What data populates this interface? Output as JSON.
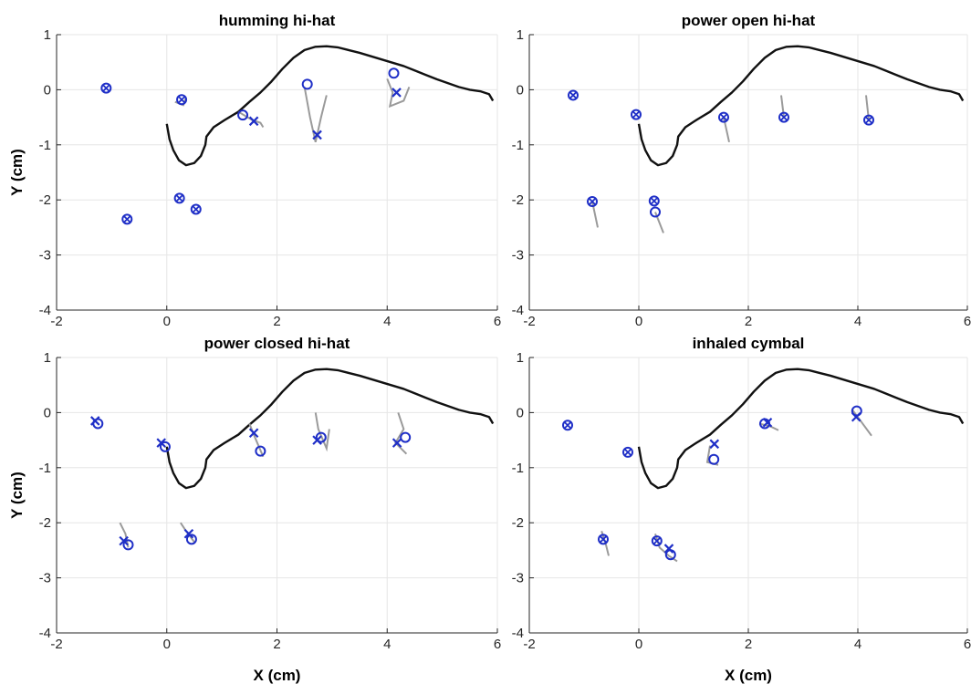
{
  "chart_data": [
    {
      "type": "scatter",
      "title": "humming hi-hat",
      "xlabel": "",
      "ylabel": "Y (cm)",
      "xlim": [
        -2,
        6
      ],
      "ylim": [
        -4,
        1
      ],
      "xticks": [
        "-2",
        "0",
        "2",
        "4",
        "6"
      ],
      "yticks": [
        "-4",
        "-3",
        "-2",
        "-1",
        "0",
        "1"
      ],
      "grid": true,
      "points": [
        {
          "x": -1.1,
          "y": 0.03,
          "cross": true
        },
        {
          "x": 0.27,
          "y": -0.18,
          "cross": true
        },
        {
          "x": -0.72,
          "y": -2.35,
          "cross": true
        },
        {
          "x": 0.23,
          "y": -1.97,
          "cross": true
        },
        {
          "x": 0.53,
          "y": -2.17,
          "cross": true
        },
        {
          "x": 1.38,
          "y": -0.46,
          "cross": false
        },
        {
          "x": 1.58,
          "y": -0.57,
          "cross": false,
          "x_mark": true
        },
        {
          "x": 2.55,
          "y": 0.1,
          "cross": false
        },
        {
          "x": 2.73,
          "y": -0.82,
          "cross": false,
          "x_mark": true
        },
        {
          "x": 4.12,
          "y": 0.3,
          "cross": false
        },
        {
          "x": 4.17,
          "y": -0.05,
          "cross": false,
          "x_mark": true
        }
      ],
      "traces": [
        [
          [
            0.15,
            -0.22
          ],
          [
            0.3,
            -0.28
          ],
          [
            0.35,
            -0.14
          ]
        ],
        [
          [
            1.3,
            -0.4
          ],
          [
            1.55,
            -0.55
          ],
          [
            1.7,
            -0.6
          ],
          [
            1.75,
            -0.68
          ]
        ],
        [
          [
            2.5,
            0.05
          ],
          [
            2.6,
            -0.5
          ],
          [
            2.7,
            -0.95
          ],
          [
            2.8,
            -0.5
          ],
          [
            2.9,
            -0.1
          ]
        ],
        [
          [
            4.0,
            0.2
          ],
          [
            4.1,
            -0.05
          ],
          [
            4.05,
            -0.3
          ],
          [
            4.3,
            -0.2
          ],
          [
            4.4,
            0.05
          ]
        ]
      ]
    },
    {
      "type": "scatter",
      "title": "power open hi-hat",
      "xlabel": "",
      "ylabel": "",
      "xlim": [
        -2,
        6
      ],
      "ylim": [
        -4,
        1
      ],
      "xticks": [
        "-2",
        "0",
        "2",
        "4",
        "6"
      ],
      "yticks": [
        "-4",
        "-3",
        "-2",
        "-1",
        "0",
        "1"
      ],
      "grid": true,
      "points": [
        {
          "x": -1.2,
          "y": -0.1,
          "cross": true
        },
        {
          "x": -0.05,
          "y": -0.45,
          "cross": true
        },
        {
          "x": -0.85,
          "y": -2.03,
          "cross": true
        },
        {
          "x": 0.28,
          "y": -2.02,
          "cross": true
        },
        {
          "x": 0.3,
          "y": -2.22,
          "cross": false
        },
        {
          "x": 1.55,
          "y": -0.5,
          "cross": true
        },
        {
          "x": 2.65,
          "y": -0.5,
          "cross": true
        },
        {
          "x": 4.2,
          "y": -0.55,
          "cross": true
        }
      ],
      "traces": [
        [
          [
            -0.85,
            -2.03
          ],
          [
            -0.75,
            -2.5
          ]
        ],
        [
          [
            0.3,
            -2.22
          ],
          [
            0.45,
            -2.6
          ]
        ],
        [
          [
            1.55,
            -0.5
          ],
          [
            1.65,
            -0.95
          ]
        ],
        [
          [
            2.6,
            -0.1
          ],
          [
            2.65,
            -0.5
          ]
        ],
        [
          [
            4.15,
            -0.1
          ],
          [
            4.2,
            -0.55
          ]
        ]
      ]
    },
    {
      "type": "scatter",
      "title": "power closed hi-hat",
      "xlabel": "X (cm)",
      "ylabel": "Y (cm)",
      "xlim": [
        -2,
        6
      ],
      "ylim": [
        -4,
        1
      ],
      "xticks": [
        "-2",
        "0",
        "2",
        "4",
        "6"
      ],
      "yticks": [
        "-4",
        "-3",
        "-2",
        "-1",
        "0",
        "1"
      ],
      "grid": true,
      "points": [
        {
          "x": -1.25,
          "y": -0.2,
          "cross": false
        },
        {
          "x": -1.3,
          "y": -0.15,
          "cross": false,
          "x_mark": true
        },
        {
          "x": -0.03,
          "y": -0.62,
          "cross": false
        },
        {
          "x": -0.1,
          "y": -0.55,
          "cross": false,
          "x_mark": true
        },
        {
          "x": -0.7,
          "y": -2.4,
          "cross": false
        },
        {
          "x": -0.78,
          "y": -2.33,
          "cross": false,
          "x_mark": true
        },
        {
          "x": 0.45,
          "y": -2.3,
          "cross": false
        },
        {
          "x": 0.4,
          "y": -2.2,
          "cross": false,
          "x_mark": true
        },
        {
          "x": 1.58,
          "y": -0.37,
          "cross": false,
          "x_mark": true
        },
        {
          "x": 1.7,
          "y": -0.7,
          "cross": false
        },
        {
          "x": 2.73,
          "y": -0.5,
          "cross": false,
          "x_mark": true
        },
        {
          "x": 2.8,
          "y": -0.45,
          "cross": false
        },
        {
          "x": 4.18,
          "y": -0.55,
          "cross": false,
          "x_mark": true
        },
        {
          "x": 4.33,
          "y": -0.45,
          "cross": false
        }
      ],
      "traces": [
        [
          [
            -0.85,
            -2.0
          ],
          [
            -0.75,
            -2.2
          ],
          [
            -0.7,
            -2.45
          ]
        ],
        [
          [
            0.25,
            -2.0
          ],
          [
            0.35,
            -2.15
          ],
          [
            0.5,
            -2.35
          ]
        ],
        [
          [
            1.5,
            -0.2
          ],
          [
            1.6,
            -0.45
          ],
          [
            1.75,
            -0.8
          ]
        ],
        [
          [
            2.7,
            0.0
          ],
          [
            2.75,
            -0.3
          ],
          [
            2.9,
            -0.65
          ],
          [
            2.95,
            -0.3
          ]
        ],
        [
          [
            4.2,
            0.0
          ],
          [
            4.3,
            -0.3
          ],
          [
            4.15,
            -0.55
          ],
          [
            4.35,
            -0.75
          ]
        ]
      ]
    },
    {
      "type": "scatter",
      "title": "inhaled cymbal",
      "xlabel": "X (cm)",
      "ylabel": "",
      "xlim": [
        -2,
        6
      ],
      "ylim": [
        -4,
        1
      ],
      "xticks": [
        "-2",
        "0",
        "2",
        "4",
        "6"
      ],
      "yticks": [
        "-4",
        "-3",
        "-2",
        "-1",
        "0",
        "1"
      ],
      "grid": true,
      "points": [
        {
          "x": -1.3,
          "y": -0.23,
          "cross": true
        },
        {
          "x": -0.2,
          "y": -0.72,
          "cross": true
        },
        {
          "x": -0.65,
          "y": -2.3,
          "cross": true
        },
        {
          "x": 0.33,
          "y": -2.33,
          "cross": true
        },
        {
          "x": 0.58,
          "y": -2.58,
          "cross": false
        },
        {
          "x": 0.55,
          "y": -2.47,
          "cross": false,
          "x_mark": true
        },
        {
          "x": 1.37,
          "y": -0.85,
          "cross": false
        },
        {
          "x": 1.38,
          "y": -0.57,
          "cross": false,
          "x_mark": true
        },
        {
          "x": 2.3,
          "y": -0.2,
          "cross": false
        },
        {
          "x": 2.35,
          "y": -0.18,
          "cross": false,
          "x_mark": true
        },
        {
          "x": 3.98,
          "y": 0.03,
          "cross": false
        },
        {
          "x": 3.97,
          "y": -0.08,
          "cross": false,
          "x_mark": true
        }
      ],
      "traces": [
        [
          [
            -0.68,
            -2.15
          ],
          [
            -0.6,
            -2.4
          ],
          [
            -0.55,
            -2.6
          ]
        ],
        [
          [
            0.3,
            -2.2
          ],
          [
            0.38,
            -2.45
          ],
          [
            0.55,
            -2.6
          ],
          [
            0.7,
            -2.7
          ]
        ],
        [
          [
            1.3,
            -0.6
          ],
          [
            1.25,
            -0.9
          ],
          [
            1.45,
            -0.95
          ]
        ],
        [
          [
            2.2,
            -0.2
          ],
          [
            2.4,
            -0.25
          ],
          [
            2.55,
            -0.32
          ]
        ],
        [
          [
            3.9,
            0.05
          ],
          [
            4.05,
            -0.15
          ],
          [
            4.25,
            -0.42
          ]
        ]
      ]
    }
  ]
}
